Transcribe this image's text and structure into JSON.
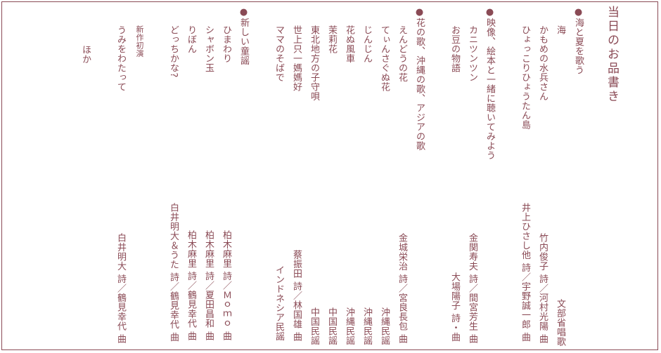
{
  "page_title": "当日のお品書き",
  "sections": [
    {
      "heading": "●海と夏を歌う",
      "items": [
        {
          "title": "海",
          "credit": "文部省唱歌"
        },
        {
          "title": "かもめの水兵さん",
          "credit": "竹内俊子 詩／河村光陽 曲"
        },
        {
          "title": "ひょっこりひょうたん島",
          "credit": "井上ひさし他 詩／宇野誠一郎 曲"
        }
      ]
    },
    {
      "heading": "●映像、絵本と一緒に聴いてみよう",
      "items": [
        {
          "title": "カニツンツン",
          "credit": "金関寿夫 詩／間宮芳生 曲"
        },
        {
          "title": "お豆の物語",
          "credit": "大場陽子 詩・曲"
        }
      ]
    },
    {
      "heading": "●花の歌、沖縄の歌、アジアの歌",
      "items": [
        {
          "title": "えんどうの花",
          "credit": "金城栄治 詩／宮良長包 曲"
        },
        {
          "title": "てぃんさぐぬ花",
          "credit": "沖縄民謡"
        },
        {
          "title": "じんじん",
          "credit": "沖縄民謡"
        },
        {
          "title": "花ぬ風車",
          "credit": "沖縄民謡"
        },
        {
          "title": "茉莉花",
          "credit": "中国民謡"
        },
        {
          "title": "東北地方の子守唄",
          "credit": "中国民謡"
        },
        {
          "title": "世上只一媽媽好",
          "credit": "蔡振田 詩／林国雄 曲"
        },
        {
          "title": "ママのそばで",
          "credit": "インドネシア民謡"
        }
      ]
    },
    {
      "heading": "●新しい童謡",
      "items": [
        {
          "title": "ひまわり",
          "credit": "柏木麻里 詩／Ｍｏｍｏ 曲"
        },
        {
          "title": "シャボン玉",
          "credit": "柏木麻里 詩／夏田昌和 曲"
        },
        {
          "title": "りぼん",
          "credit": "柏木麻里 詩／鶴見幸代 曲"
        },
        {
          "title": "どっちかな?",
          "credit": "白井明大＆うた 詩／鶴見幸代 曲"
        },
        {
          "note": "新作初演",
          "title": "うみをわたって",
          "credit": "白井明大 詩／鶴見幸代 曲"
        }
      ]
    }
  ],
  "closing": "ほか"
}
